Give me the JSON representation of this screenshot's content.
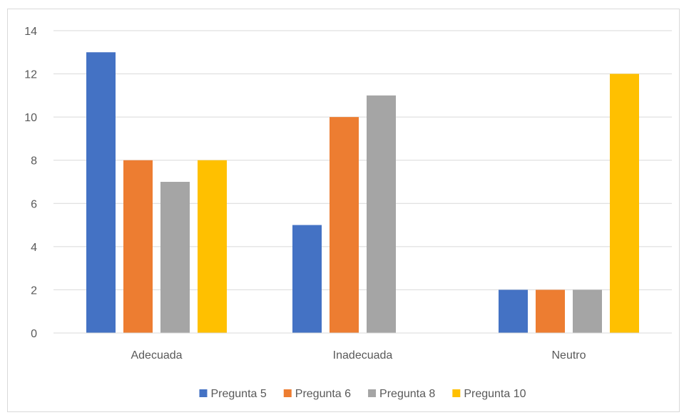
{
  "chart_data": {
    "type": "bar",
    "categories": [
      "Adecuada",
      "Inadecuada",
      "Neutro"
    ],
    "series": [
      {
        "name": "Pregunta 5",
        "color": "#4472C4",
        "values": [
          13,
          5,
          2
        ]
      },
      {
        "name": "Pregunta 6",
        "color": "#ED7D31",
        "values": [
          8,
          10,
          2
        ]
      },
      {
        "name": "Pregunta 8",
        "color": "#A5A5A5",
        "values": [
          7,
          11,
          2
        ]
      },
      {
        "name": "Pregunta 10",
        "color": "#FFC000",
        "values": [
          8,
          0,
          12
        ]
      }
    ],
    "ylim": [
      0,
      14
    ],
    "yticks": [
      0,
      2,
      4,
      6,
      8,
      10,
      12,
      14
    ],
    "grid": true,
    "legend": "bottom",
    "title": "",
    "xlabel": "",
    "ylabel": ""
  }
}
